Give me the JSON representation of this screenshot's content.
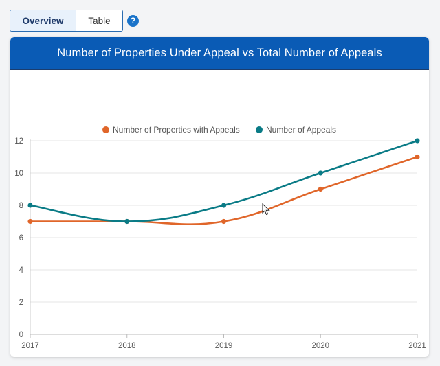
{
  "tabs": [
    {
      "label": "Overview",
      "active": true
    },
    {
      "label": "Table",
      "active": false
    }
  ],
  "help": {
    "glyph": "?"
  },
  "card": {
    "title": "Number of Properties Under Appeal vs Total Number of Appeals"
  },
  "colors": {
    "accent": "#0a5bb5",
    "series1": "#e0662a",
    "series2": "#0a7b86"
  },
  "chart_data": {
    "type": "line",
    "x": [
      2017,
      2018,
      2019,
      2020,
      2021
    ],
    "x_tick_labels": [
      "2017",
      "2018",
      "2019",
      "2020",
      "2021"
    ],
    "y_tick_labels": [
      "0",
      "2",
      "4",
      "6",
      "8",
      "10",
      "12"
    ],
    "ylim": [
      0,
      12
    ],
    "legend_position": "top-center",
    "grid": true,
    "series": [
      {
        "name": "Number of Properties with Appeals",
        "values": [
          7,
          7,
          7,
          9,
          11
        ],
        "color": "#e0662a"
      },
      {
        "name": "Number of Appeals",
        "values": [
          8,
          7,
          8,
          10,
          12
        ],
        "color": "#0a7b86"
      }
    ]
  }
}
